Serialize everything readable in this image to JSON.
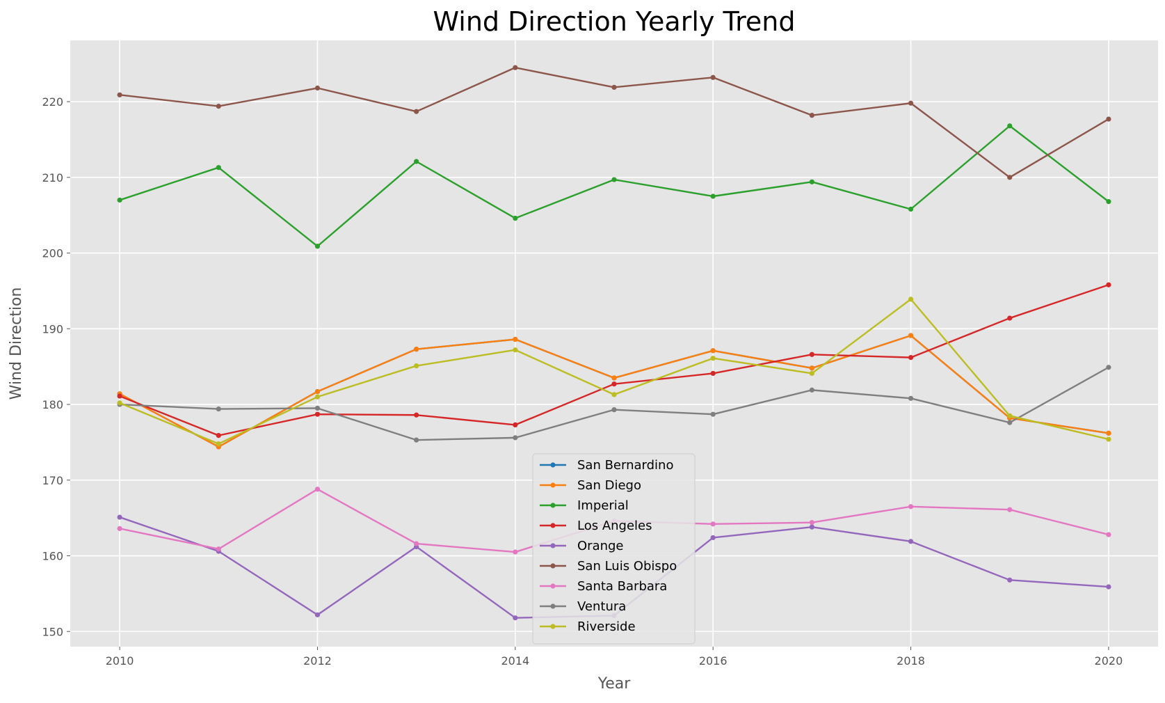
{
  "chart_data": {
    "type": "line",
    "title": "Wind Direction Yearly Trend",
    "xlabel": "Year",
    "ylabel": "Wind Direction",
    "x": [
      2010,
      2011,
      2012,
      2013,
      2014,
      2015,
      2016,
      2017,
      2018,
      2019,
      2020
    ],
    "xticks": [
      2010,
      2012,
      2014,
      2016,
      2018,
      2020
    ],
    "yticks": [
      150,
      160,
      170,
      180,
      190,
      200,
      210,
      220
    ],
    "xlim": [
      2009.5,
      2020.5
    ],
    "ylim": [
      148,
      228.1
    ],
    "grid": true,
    "background": "#e5e5e5",
    "legend_position": "lower center",
    "series": [
      {
        "name": "San Bernardino",
        "color": "#1f77b4",
        "values": [
          181.4,
          174.4,
          181.7,
          187.3,
          188.6,
          183.5,
          187.1,
          184.8,
          189.1,
          178.2,
          176.2
        ]
      },
      {
        "name": "San Diego",
        "color": "#ff7f0e",
        "values": [
          181.4,
          174.4,
          181.7,
          187.3,
          188.6,
          183.5,
          187.1,
          184.8,
          189.1,
          178.2,
          176.2
        ]
      },
      {
        "name": "Imperial",
        "color": "#2ca02c",
        "values": [
          207.0,
          211.3,
          200.9,
          212.1,
          204.6,
          209.7,
          207.5,
          209.4,
          205.8,
          216.8,
          206.8
        ]
      },
      {
        "name": "Los Angeles",
        "color": "#d62728",
        "values": [
          181.1,
          175.9,
          178.7,
          178.6,
          177.3,
          182.7,
          184.1,
          186.6,
          186.2,
          191.4,
          195.8
        ]
      },
      {
        "name": "Orange",
        "color": "#9467bd",
        "values": [
          165.1,
          160.6,
          152.2,
          161.2,
          151.8,
          152.1,
          162.4,
          163.8,
          161.9,
          156.8,
          155.9
        ]
      },
      {
        "name": "San Luis Obispo",
        "color": "#8c564b",
        "values": [
          220.9,
          219.4,
          221.8,
          218.7,
          224.5,
          221.9,
          223.2,
          218.2,
          219.8,
          210.0,
          217.7
        ]
      },
      {
        "name": "Santa Barbara",
        "color": "#e377c2",
        "values": [
          163.6,
          160.9,
          168.8,
          161.6,
          160.5,
          164.6,
          164.2,
          164.4,
          166.5,
          166.1,
          162.8
        ]
      },
      {
        "name": "Ventura",
        "color": "#7f7f7f",
        "values": [
          180.0,
          179.4,
          179.5,
          175.3,
          175.6,
          179.3,
          178.7,
          181.9,
          180.8,
          177.6,
          184.9
        ]
      },
      {
        "name": "Riverside",
        "color": "#bcbd22",
        "values": [
          180.2,
          174.8,
          181.0,
          185.1,
          187.2,
          181.3,
          186.1,
          184.1,
          193.9,
          178.5,
          175.4
        ]
      }
    ]
  }
}
